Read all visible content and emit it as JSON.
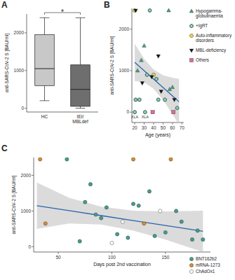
{
  "chart_data": [
    {
      "panel": "A",
      "type": "box",
      "y_label": "anti-SARS-CoV-2 S [BAU/ml]",
      "categories": [
        "HC",
        "IEI/\nMBLdef"
      ],
      "colors": [
        "#c8c8c8",
        "#6e6e6e"
      ],
      "boxes": [
        {
          "min": 200,
          "q1": 600,
          "median": 1050,
          "q3": 1950,
          "max": 2400
        },
        {
          "min": 0,
          "q1": 50,
          "median": 500,
          "q3": 1150,
          "max": 2400
        }
      ],
      "ylim": [
        -100,
        2500
      ],
      "yticks": [
        0,
        1000,
        2000
      ],
      "significance": {
        "text": "*",
        "between": [
          0,
          1
        ]
      }
    },
    {
      "panel": "B",
      "type": "scatter",
      "x_label": "Age (years)",
      "y_label": "anti-SARS-CoV-2 S [BAU/ml]",
      "xlim": [
        17,
        72
      ],
      "xticks": [
        20,
        30,
        40,
        50,
        60,
        70
      ],
      "ylim": [
        -250,
        2500
      ],
      "yticks": [
        0,
        1000,
        2000
      ],
      "legend": "right",
      "series": [
        {
          "name": "Hypogamma-\nglobulinaemia",
          "color": "#3aa37a",
          "marker": "triangle",
          "x": [
            23,
            27,
            30,
            56,
            57,
            60
          ],
          "values": [
            1000,
            1250,
            1600,
            2450,
            550,
            600
          ]
        },
        {
          "name": "+IgRT",
          "color": "#3a9b7f",
          "marker": "circle-cross",
          "x": [
            20,
            25,
            21,
            31,
            36,
            43,
            45,
            52,
            65,
            33
          ],
          "values": [
            0,
            300,
            300,
            0,
            2450,
            800,
            300,
            300,
            100,
            900
          ]
        },
        {
          "name": "Auto-inflammatory\ndisorders",
          "color": "#e8d44d",
          "marker": "circle",
          "x": [
            20,
            40
          ],
          "values": [
            2450,
            900
          ]
        },
        {
          "name": "MBL-deficiency",
          "color": "#111111",
          "marker": "triangle-down",
          "x": [
            21,
            28,
            38,
            45,
            48,
            62
          ],
          "values": [
            2450,
            700,
            850,
            1350,
            500,
            300
          ]
        },
        {
          "name": "Others",
          "color": "#d96aa0",
          "marker": "square",
          "x": [
            39,
            61
          ],
          "values": [
            0,
            0
          ]
        }
      ],
      "trend": {
        "x": [
          20,
          30,
          40,
          50,
          60,
          67
        ],
        "values": [
          1200,
          998,
          796,
          594,
          392,
          250
        ],
        "lower": [
          750,
          720,
          560,
          300,
          -50,
          -300
        ],
        "upper": [
          1650,
          1280,
          1030,
          890,
          830,
          800
        ]
      },
      "annotations": [
        {
          "text": "XLA",
          "x": 20,
          "y": 0
        },
        {
          "text": "XLA",
          "x": 31,
          "y": 0
        }
      ]
    },
    {
      "panel": "C",
      "type": "scatter",
      "x_label": "Days post 2nd vaccination",
      "y_label": "anti-SARS-CoV-2 S [BAU/ml]",
      "xlim": [
        27,
        192
      ],
      "xticks": [
        50,
        100,
        150
      ],
      "ylim": [
        -150,
        2500
      ],
      "yticks": [
        0,
        1000,
        2000
      ],
      "legend": "bottom-right",
      "series": [
        {
          "name": "BNT162b2",
          "color": "#3f9e8f",
          "marker": "circle",
          "x": [
            58,
            70,
            75,
            80,
            85,
            90,
            95,
            105,
            115,
            120,
            125,
            135,
            140,
            150,
            160,
            165,
            175,
            180,
            185
          ],
          "values": [
            2450,
            150,
            1250,
            1750,
            900,
            800,
            1100,
            350,
            250,
            1200,
            1150,
            1550,
            300,
            400,
            1000,
            700,
            200,
            450,
            200
          ]
        },
        {
          "name": "mRNA-1273",
          "color": "#e08a2c",
          "marker": "circle",
          "x": [
            33,
            38,
            120,
            130,
            155
          ],
          "values": [
            2450,
            650,
            2450,
            650,
            2450
          ]
        },
        {
          "name": "ChAdOx1",
          "color": "#ffffff",
          "marker": "circle",
          "x": [
            100,
            110,
            145
          ],
          "values": [
            100,
            700,
            1000
          ]
        }
      ],
      "trend": {
        "x": [
          30,
          60,
          90,
          120,
          150,
          185
        ],
        "values": [
          1150,
          1011,
          871,
          732,
          593,
          430
        ],
        "lower": [
          500,
          650,
          620,
          450,
          200,
          -150
        ],
        "upper": [
          1800,
          1370,
          1120,
          1010,
          990,
          1010
        ]
      }
    }
  ]
}
